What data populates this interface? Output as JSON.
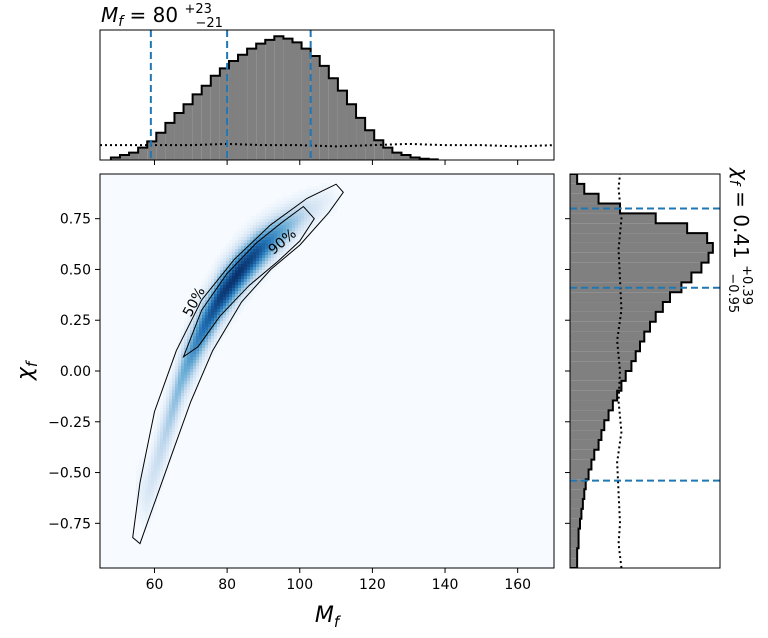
{
  "chart_data": [
    {
      "type": "heatmap",
      "name": "joint-posterior",
      "xlabel": "M_f",
      "ylabel": "χ_f",
      "xlim": [
        45,
        170
      ],
      "ylim": [
        -0.97,
        0.97
      ],
      "x_ticks": [
        "60",
        "80",
        "100",
        "120",
        "140",
        "160"
      ],
      "y_ticks": [
        "−0.75",
        "−0.50",
        "−0.25",
        "0.00",
        "0.25",
        "0.50",
        "0.75"
      ],
      "colormap": "Blues",
      "ridge": {
        "x": [
          58,
          63,
          68,
          73,
          78,
          83,
          88,
          93,
          98,
          103,
          108
        ],
        "y": [
          -0.6,
          -0.3,
          0.0,
          0.2,
          0.36,
          0.48,
          0.58,
          0.66,
          0.73,
          0.79,
          0.84
        ],
        "width": [
          0.18,
          0.18,
          0.17,
          0.16,
          0.15,
          0.14,
          0.13,
          0.12,
          0.11,
          0.1,
          0.09
        ],
        "weight": [
          0.15,
          0.3,
          0.5,
          0.75,
          0.95,
          1.0,
          0.9,
          0.65,
          0.4,
          0.2,
          0.08
        ]
      },
      "contours": [
        {
          "label": "50%",
          "x": [
            68,
            73,
            80,
            88,
            95,
            101,
            104,
            100,
            94,
            86,
            78,
            72,
            68
          ],
          "y": [
            0.07,
            0.3,
            0.48,
            0.63,
            0.73,
            0.81,
            0.75,
            0.64,
            0.54,
            0.42,
            0.27,
            0.12,
            0.07
          ]
        },
        {
          "label": "90%",
          "x": [
            54,
            56,
            60,
            66,
            73,
            82,
            92,
            102,
            110,
            112,
            108,
            100,
            92,
            84,
            76,
            70,
            65,
            61,
            58,
            56,
            54
          ],
          "y": [
            -0.82,
            -0.55,
            -0.2,
            0.1,
            0.35,
            0.55,
            0.72,
            0.85,
            0.92,
            0.88,
            0.78,
            0.62,
            0.5,
            0.34,
            0.1,
            -0.15,
            -0.4,
            -0.6,
            -0.75,
            -0.85,
            -0.82
          ]
        }
      ]
    },
    {
      "type": "bar",
      "name": "marginal-M_f",
      "title_base": "M_f = 80",
      "title_sup": "+23",
      "title_sub": "−21",
      "bin_start": 48,
      "bin_width": 2.5,
      "values": [
        0.02,
        0.04,
        0.06,
        0.1,
        0.15,
        0.22,
        0.3,
        0.38,
        0.45,
        0.53,
        0.6,
        0.68,
        0.74,
        0.8,
        0.85,
        0.9,
        0.94,
        0.97,
        1.0,
        0.98,
        0.95,
        0.9,
        0.84,
        0.76,
        0.66,
        0.56,
        0.45,
        0.34,
        0.24,
        0.16,
        0.1,
        0.06,
        0.04,
        0.02,
        0.01,
        0.005
      ],
      "prior": {
        "x": [
          45,
          50,
          60,
          70,
          80,
          90,
          100,
          110,
          120,
          130,
          140,
          150,
          160,
          170
        ],
        "y": [
          0.12,
          0.12,
          0.12,
          0.12,
          0.13,
          0.12,
          0.12,
          0.11,
          0.12,
          0.13,
          0.12,
          0.12,
          0.11,
          0.12
        ]
      },
      "quantiles": [
        59,
        80,
        103
      ],
      "xlim": [
        45,
        170
      ],
      "ylim": [
        0,
        1.05
      ]
    },
    {
      "type": "bar",
      "orientation": "horizontal",
      "name": "marginal-chi_f",
      "title_base": "χ_f = 0.41",
      "title_sup": "+0.39",
      "title_sub": "−0.95",
      "bin_start": -0.97,
      "bin_width": 0.0485,
      "values": [
        0.05,
        0.05,
        0.06,
        0.06,
        0.07,
        0.08,
        0.09,
        0.1,
        0.11,
        0.13,
        0.15,
        0.17,
        0.2,
        0.22,
        0.24,
        0.27,
        0.3,
        0.33,
        0.36,
        0.39,
        0.43,
        0.46,
        0.49,
        0.52,
        0.56,
        0.6,
        0.65,
        0.7,
        0.78,
        0.85,
        0.92,
        0.97,
        1.0,
        0.96,
        0.82,
        0.6,
        0.35,
        0.2,
        0.1,
        0.05
      ],
      "prior": {
        "y": [
          -0.97,
          -0.85,
          -0.75,
          -0.6,
          -0.45,
          -0.3,
          -0.15,
          0.0,
          0.15,
          0.3,
          0.45,
          0.6,
          0.75,
          0.9,
          0.97
        ],
        "x": [
          0.36,
          0.34,
          0.35,
          0.34,
          0.33,
          0.36,
          0.34,
          0.35,
          0.33,
          0.36,
          0.35,
          0.34,
          0.36,
          0.34,
          0.35
        ]
      },
      "quantiles": [
        -0.54,
        0.41,
        0.8
      ],
      "ylim": [
        -0.97,
        0.97
      ],
      "xlim": [
        0,
        1.05
      ]
    }
  ],
  "colors": {
    "hist_fill": "#808080",
    "hist_edge": "#000000",
    "quantile_line": "#1f77b4",
    "contour": "#000000"
  }
}
